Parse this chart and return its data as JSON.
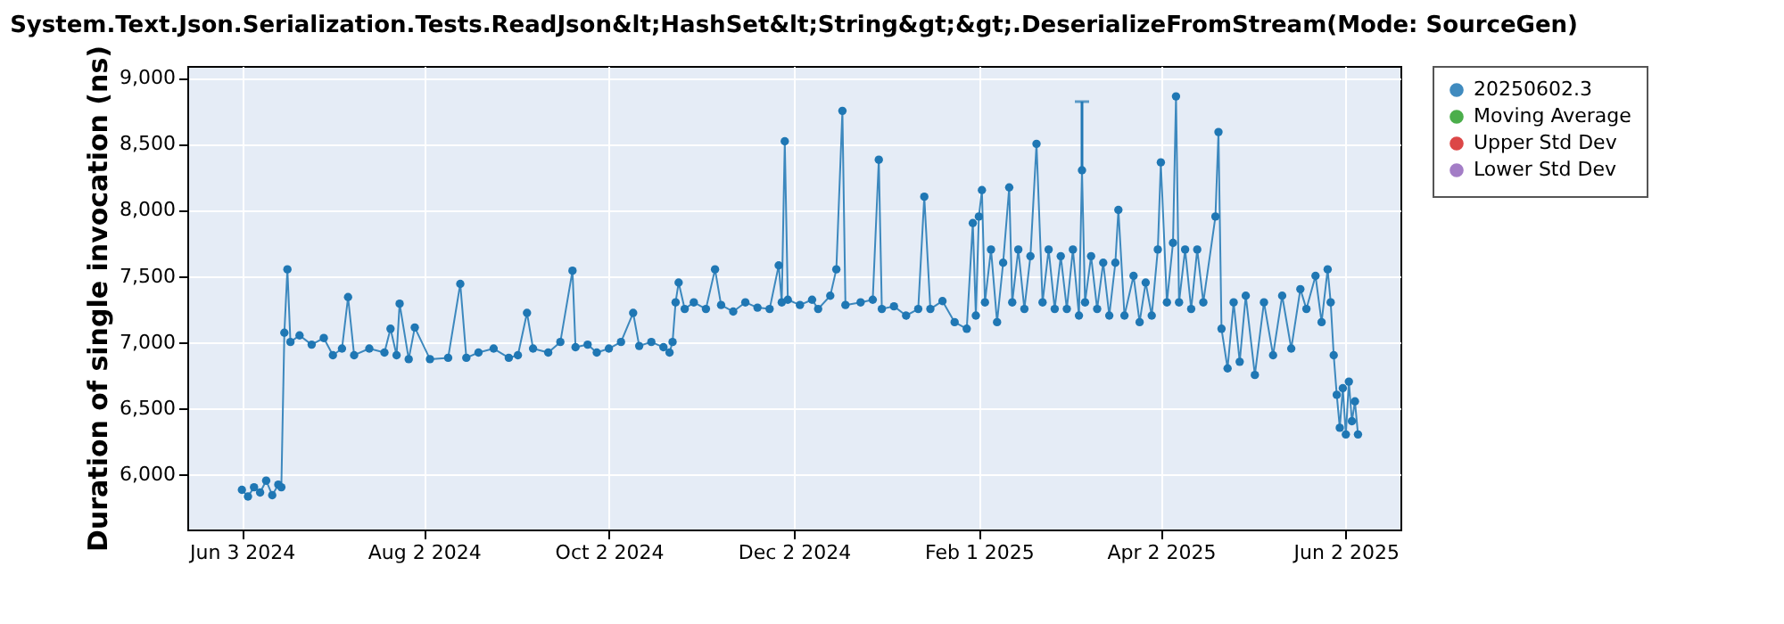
{
  "chart_data": {
    "type": "line",
    "title": "System.Text.Json.Serialization.Tests.ReadJson&lt;HashSet&lt;String&gt;&gt;.DeserializeFromStream(Mode: SourceGen)",
    "ylabel": "Duration of single invocation (ns)",
    "x": [
      "2024-06-03",
      "2024-06-05",
      "2024-06-07",
      "2024-06-09",
      "2024-06-11",
      "2024-06-13",
      "2024-06-15",
      "2024-06-16",
      "2024-06-17",
      "2024-06-18",
      "2024-06-19",
      "2024-06-22",
      "2024-06-26",
      "2024-06-30",
      "2024-07-03",
      "2024-07-06",
      "2024-07-08",
      "2024-07-10",
      "2024-07-15",
      "2024-07-20",
      "2024-07-22",
      "2024-07-24",
      "2024-07-25",
      "2024-07-28",
      "2024-07-30",
      "2024-08-04",
      "2024-08-10",
      "2024-08-14",
      "2024-08-16",
      "2024-08-20",
      "2024-08-25",
      "2024-08-30",
      "2024-09-02",
      "2024-09-05",
      "2024-09-07",
      "2024-09-12",
      "2024-09-16",
      "2024-09-20",
      "2024-09-21",
      "2024-09-25",
      "2024-09-28",
      "2024-10-02",
      "2024-10-06",
      "2024-10-10",
      "2024-10-12",
      "2024-10-16",
      "2024-10-20",
      "2024-10-22",
      "2024-10-23",
      "2024-10-24",
      "2024-10-25",
      "2024-10-27",
      "2024-10-30",
      "2024-11-03",
      "2024-11-06",
      "2024-11-08",
      "2024-11-12",
      "2024-11-16",
      "2024-11-20",
      "2024-11-24",
      "2024-11-27",
      "2024-11-28",
      "2024-11-29",
      "2024-11-30",
      "2024-12-04",
      "2024-12-08",
      "2024-12-10",
      "2024-12-14",
      "2024-12-16",
      "2024-12-18",
      "2024-12-19",
      "2024-12-24",
      "2024-12-28",
      "2024-12-30",
      "2024-12-31",
      "2025-01-04",
      "2025-01-08",
      "2025-01-12",
      "2025-01-14",
      "2025-01-16",
      "2025-01-20",
      "2025-01-24",
      "2025-01-28",
      "2025-01-30",
      "2025-01-31",
      "2025-02-01",
      "2025-02-02",
      "2025-02-03",
      "2025-02-05",
      "2025-02-07",
      "2025-02-09",
      "2025-02-11",
      "2025-02-12",
      "2025-02-14",
      "2025-02-16",
      "2025-02-18",
      "2025-02-20",
      "2025-02-22",
      "2025-02-24",
      "2025-02-26",
      "2025-02-28",
      "2025-03-02",
      "2025-03-04",
      "2025-03-06",
      "2025-03-07",
      "2025-03-08",
      "2025-03-10",
      "2025-03-12",
      "2025-03-14",
      "2025-03-16",
      "2025-03-18",
      "2025-03-19",
      "2025-03-21",
      "2025-03-24",
      "2025-03-26",
      "2025-03-28",
      "2025-03-30",
      "2025-04-01",
      "2025-04-02",
      "2025-04-04",
      "2025-04-06",
      "2025-04-07",
      "2025-04-08",
      "2025-04-10",
      "2025-04-12",
      "2025-04-14",
      "2025-04-16",
      "2025-04-20",
      "2025-04-21",
      "2025-04-22",
      "2025-04-24",
      "2025-04-26",
      "2025-04-28",
      "2025-04-30",
      "2025-05-03",
      "2025-05-06",
      "2025-05-09",
      "2025-05-12",
      "2025-05-15",
      "2025-05-18",
      "2025-05-20",
      "2025-05-23",
      "2025-05-25",
      "2025-05-27",
      "2025-05-28",
      "2025-05-29",
      "2025-05-30",
      "2025-05-31",
      "2025-06-01",
      "2025-06-02",
      "2025-06-03",
      "2025-06-04",
      "2025-06-05",
      "2025-06-06"
    ],
    "series": [
      {
        "name": "20250602.3",
        "color": "#1f77b4",
        "values": [
          5880,
          5830,
          5900,
          5860,
          5950,
          5840,
          5920,
          5900,
          7070,
          7550,
          7000,
          7050,
          6980,
          7030,
          6900,
          6950,
          7340,
          6900,
          6950,
          6920,
          7100,
          6900,
          7290,
          6870,
          7110,
          6870,
          6880,
          7440,
          6880,
          6920,
          6950,
          6880,
          6900,
          7220,
          6950,
          6920,
          7000,
          7540,
          6960,
          6980,
          6920,
          6950,
          7000,
          7220,
          6970,
          7000,
          6960,
          6920,
          7000,
          7300,
          7450,
          7250,
          7300,
          7250,
          7550,
          7280,
          7230,
          7300,
          7260,
          7250,
          7580,
          7300,
          8520,
          7320,
          7280,
          7320,
          7250,
          7350,
          7550,
          8750,
          7280,
          7300,
          7320,
          8380,
          7250,
          7270,
          7200,
          7250,
          8100,
          7250,
          7310,
          7150,
          7100,
          7900,
          7200,
          7950,
          8150,
          7300,
          7700,
          7150,
          7600,
          8170,
          7300,
          7700,
          7250,
          7650,
          8500,
          7300,
          7700,
          7250,
          7650,
          7250,
          7700,
          7200,
          8300,
          7300,
          7650,
          7250,
          7600,
          7200,
          7600,
          8000,
          7200,
          7500,
          7150,
          7450,
          7200,
          7700,
          8360,
          7300,
          7750,
          8860,
          7300,
          7700,
          7250,
          7700,
          7300,
          7950,
          8590,
          7100,
          6800,
          7300,
          6850,
          7350,
          6750,
          7300,
          6900,
          7350,
          6950,
          7400,
          7250,
          7500,
          7150,
          7550,
          7300,
          6900,
          6600,
          6350,
          6650,
          6300,
          6700,
          6400,
          6550,
          6300
        ],
        "errors": [
          null,
          null,
          null,
          null,
          null,
          null,
          null,
          null,
          null,
          null,
          null,
          null,
          null,
          null,
          null,
          null,
          null,
          null,
          null,
          null,
          null,
          null,
          null,
          null,
          null,
          null,
          null,
          null,
          null,
          null,
          null,
          null,
          null,
          null,
          null,
          null,
          null,
          null,
          null,
          null,
          null,
          null,
          null,
          null,
          null,
          null,
          null,
          null,
          null,
          null,
          null,
          null,
          null,
          null,
          null,
          null,
          null,
          null,
          null,
          null,
          null,
          null,
          null,
          null,
          null,
          null,
          null,
          null,
          null,
          null,
          null,
          null,
          null,
          null,
          null,
          null,
          null,
          null,
          null,
          null,
          null,
          null,
          null,
          null,
          null,
          null,
          null,
          null,
          null,
          null,
          null,
          null,
          null,
          null,
          null,
          null,
          null,
          null,
          null,
          null,
          null,
          null,
          null,
          null,
          [
            8300,
            8820
          ],
          null,
          null,
          null,
          null,
          null,
          null,
          null,
          null,
          null,
          null,
          null,
          null,
          null,
          null,
          null,
          null,
          null,
          null,
          null,
          null,
          null,
          null,
          null,
          null,
          null,
          null,
          null,
          null,
          null,
          null,
          null,
          null,
          null,
          null,
          null,
          null,
          null,
          null,
          null,
          null,
          null,
          null,
          null,
          null,
          null,
          null,
          null,
          null,
          null
        ]
      },
      {
        "name": "Moving Average",
        "color": "#2ca02c",
        "values": [
          null,
          null,
          null,
          null,
          null,
          null,
          null,
          null,
          null,
          null,
          null,
          null,
          null,
          null,
          null,
          null,
          null,
          null,
          null,
          null,
          null,
          null,
          null,
          null,
          null,
          null,
          null,
          null,
          null,
          null,
          null,
          null,
          null,
          null,
          null,
          null,
          null,
          null,
          null,
          null,
          null,
          null,
          null,
          null,
          null,
          null,
          null,
          null,
          null,
          null,
          null,
          null,
          null,
          null,
          null,
          null,
          null,
          null,
          null,
          null,
          null,
          null,
          null,
          null,
          null,
          null,
          null,
          null,
          null,
          null,
          null,
          null,
          null,
          null,
          null,
          null,
          null,
          null,
          null,
          null,
          null,
          null,
          null,
          null,
          null,
          null,
          null,
          null,
          null,
          null,
          null,
          null,
          null,
          null,
          null,
          null,
          null,
          null,
          null,
          null,
          null,
          null,
          null,
          null,
          null,
          null,
          null,
          null,
          null,
          null,
          null,
          null,
          null,
          null,
          null,
          null,
          null,
          null,
          null,
          null,
          null,
          null,
          null,
          null,
          null,
          null,
          null,
          null,
          null,
          null,
          null,
          null,
          null,
          null,
          null,
          null,
          null,
          null,
          null,
          null,
          null,
          null,
          null,
          null,
          null,
          null,
          null,
          null,
          null,
          null,
          null,
          null,
          null,
          null
        ]
      },
      {
        "name": "Upper Std Dev",
        "color": "#d62728",
        "values": [
          null,
          null,
          null,
          null,
          null,
          null,
          null,
          null,
          null,
          null,
          null,
          null,
          null,
          null,
          null,
          null,
          null,
          null,
          null,
          null,
          null,
          null,
          null,
          null,
          null,
          null,
          null,
          null,
          null,
          null,
          null,
          null,
          null,
          null,
          null,
          null,
          null,
          null,
          null,
          null,
          null,
          null,
          null,
          null,
          null,
          null,
          null,
          null,
          null,
          null,
          null,
          null,
          null,
          null,
          null,
          null,
          null,
          null,
          null,
          null,
          null,
          null,
          null,
          null,
          null,
          null,
          null,
          null,
          null,
          null,
          null,
          null,
          null,
          null,
          null,
          null,
          null,
          null,
          null,
          null,
          null,
          null,
          null,
          null,
          null,
          null,
          null,
          null,
          null,
          null,
          null,
          null,
          null,
          null,
          null,
          null,
          null,
          null,
          null,
          null,
          null,
          null,
          null,
          null,
          null,
          null,
          null,
          null,
          null,
          null,
          null,
          null,
          null,
          null,
          null,
          null,
          null,
          null,
          null,
          null,
          null,
          null,
          null,
          null,
          null,
          null,
          null,
          null,
          null,
          null,
          null,
          null,
          null,
          null,
          null,
          null,
          null,
          null,
          null,
          null,
          null,
          null,
          null,
          null,
          null,
          null,
          null,
          null,
          null,
          null,
          null,
          null,
          null,
          null
        ]
      },
      {
        "name": "Lower Std Dev",
        "color": "#9467bd",
        "values": [
          null,
          null,
          null,
          null,
          null,
          null,
          null,
          null,
          null,
          null,
          null,
          null,
          null,
          null,
          null,
          null,
          null,
          null,
          null,
          null,
          null,
          null,
          null,
          null,
          null,
          null,
          null,
          null,
          null,
          null,
          null,
          null,
          null,
          null,
          null,
          null,
          null,
          null,
          null,
          null,
          null,
          null,
          null,
          null,
          null,
          null,
          null,
          null,
          null,
          null,
          null,
          null,
          null,
          null,
          null,
          null,
          null,
          null,
          null,
          null,
          null,
          null,
          null,
          null,
          null,
          null,
          null,
          null,
          null,
          null,
          null,
          null,
          null,
          null,
          null,
          null,
          null,
          null,
          null,
          null,
          null,
          null,
          null,
          null,
          null,
          null,
          null,
          null,
          null,
          null,
          null,
          null,
          null,
          null,
          null,
          null,
          null,
          null,
          null,
          null,
          null,
          null,
          null,
          null,
          null,
          null,
          null,
          null,
          null,
          null,
          null,
          null,
          null,
          null,
          null,
          null,
          null,
          null,
          null,
          null,
          null,
          null,
          null,
          null,
          null,
          null,
          null,
          null,
          null,
          null,
          null,
          null,
          null,
          null,
          null,
          null,
          null,
          null,
          null,
          null,
          null,
          null,
          null,
          null,
          null,
          null,
          null,
          null,
          null,
          null,
          null,
          null,
          null,
          null
        ]
      }
    ],
    "xlim": [
      "2024-05-16",
      "2025-06-20"
    ],
    "xticks": [
      {
        "value": "2024-06-03",
        "label": "Jun 3 2024"
      },
      {
        "value": "2024-08-02",
        "label": "Aug 2 2024"
      },
      {
        "value": "2024-10-02",
        "label": "Oct 2 2024"
      },
      {
        "value": "2024-12-02",
        "label": "Dec 2 2024"
      },
      {
        "value": "2025-02-01",
        "label": "Feb 1 2025"
      },
      {
        "value": "2025-04-02",
        "label": "Apr 2 2025"
      },
      {
        "value": "2025-06-02",
        "label": "Jun 2 2025"
      }
    ],
    "ylim": [
      5580,
      9090
    ],
    "yticks": [
      {
        "value": 6000,
        "label": "6,000"
      },
      {
        "value": 6500,
        "label": "6,500"
      },
      {
        "value": 7000,
        "label": "7,000"
      },
      {
        "value": 7500,
        "label": "7,500"
      },
      {
        "value": 8000,
        "label": "8,000"
      },
      {
        "value": 8500,
        "label": "8,500"
      },
      {
        "value": 9000,
        "label": "9,000"
      }
    ],
    "grid": true,
    "legend": "right",
    "marker": "circle",
    "line_style": "solid"
  }
}
